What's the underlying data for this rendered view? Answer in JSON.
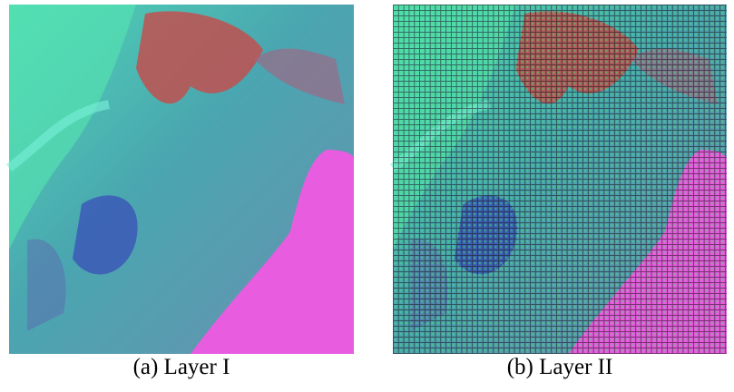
{
  "figure": {
    "panels": [
      {
        "caption": "(a) Layer I"
      },
      {
        "caption": "(b) Layer II"
      }
    ]
  }
}
